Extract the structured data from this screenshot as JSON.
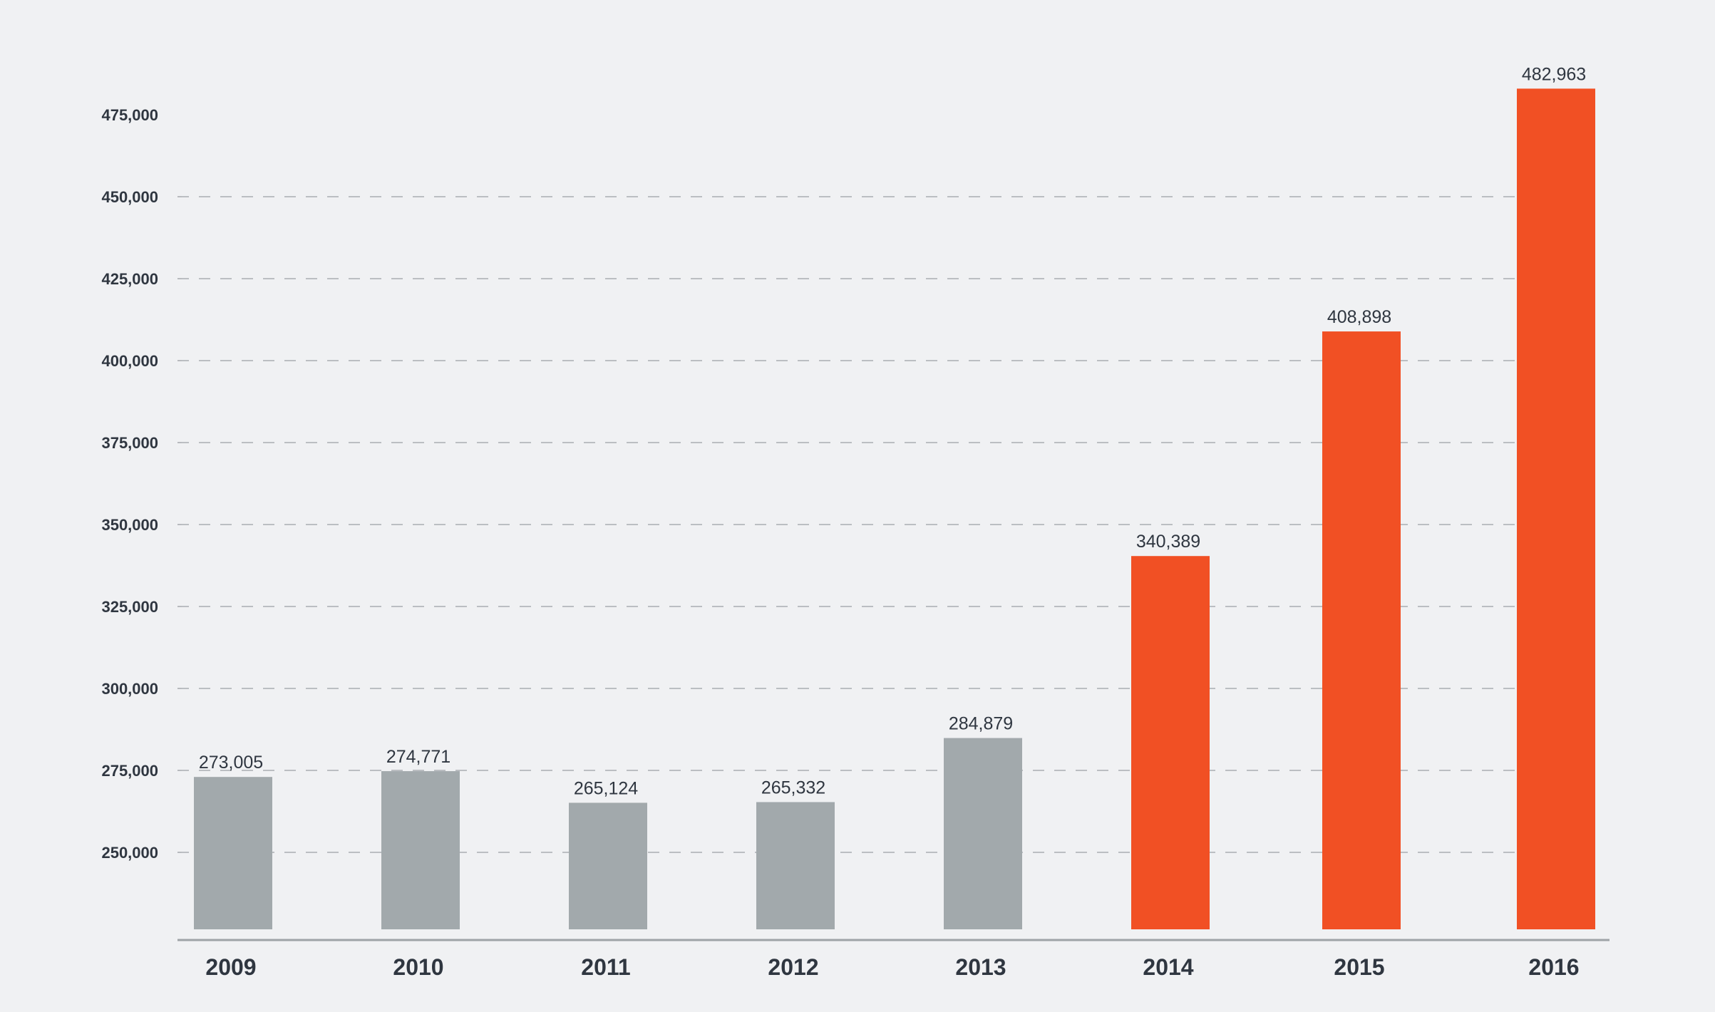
{
  "chart_data": {
    "type": "bar",
    "title": "",
    "xlabel": "",
    "ylabel": "",
    "categories": [
      "2009",
      "2010",
      "2011",
      "2012",
      "2013",
      "2014",
      "2015",
      "2016"
    ],
    "values": [
      273005,
      274771,
      265124,
      265332,
      284879,
      340389,
      408898,
      482963
    ],
    "value_labels": [
      "273,005",
      "274,771",
      "265,124",
      "265,332",
      "284,879",
      "340,389",
      "408,898",
      "482,963"
    ],
    "y_ticks": [
      250000,
      275000,
      300000,
      325000,
      350000,
      375000,
      400000,
      425000,
      450000,
      475000
    ],
    "y_tick_labels": [
      "250,000",
      "275,000",
      "300,000",
      "325,000",
      "350,000",
      "375,000",
      "400,000",
      "425,000",
      "450,000",
      "475,000"
    ],
    "ylim": [
      226000,
      485000
    ],
    "grid": true,
    "legend": false,
    "colors": {
      "background": "#f0f1f3",
      "baseline_bars": "#a2a9ac",
      "highlight_bars": "#f15024",
      "highlight_from": "2014"
    }
  }
}
